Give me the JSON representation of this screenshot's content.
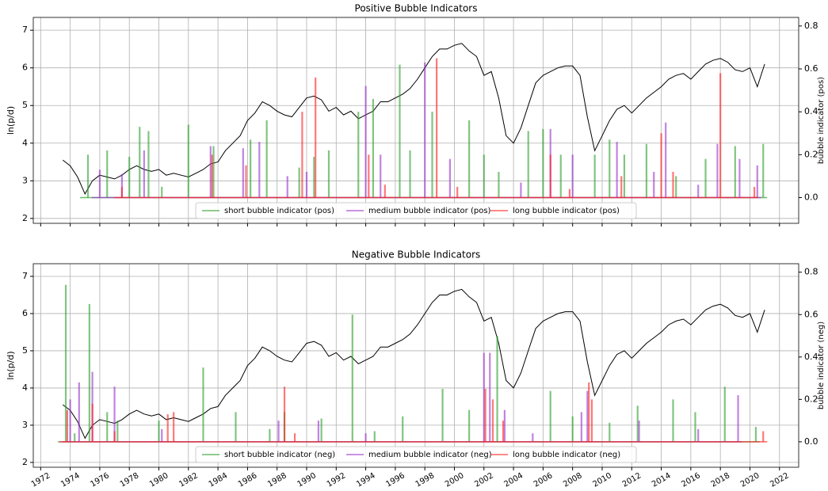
{
  "chart_data": [
    {
      "type": "line",
      "title": "Positive Bubble Indicators",
      "ylabel": "ln(p/d)",
      "y2label": "bubble indicator (pos)",
      "ylim": [
        1.87,
        7.34
      ],
      "yticks": [
        2,
        3,
        4,
        5,
        6,
        7
      ],
      "y2lim": [
        -0.12,
        0.84
      ],
      "y2ticks": [
        {
          "value": 0,
          "label": "0.0"
        },
        0.2,
        0.4,
        0.6,
        0.8
      ],
      "grid": true,
      "legend": "lower center",
      "series": [
        {
          "color": "#000000",
          "x": [
            1973.5,
            1974.0,
            1974.5,
            1975.0,
            1975.5,
            1976.0,
            1976.5,
            1977.0,
            1977.5,
            1978.0,
            1978.5,
            1979.0,
            1979.5,
            1980.0,
            1980.5,
            1981.0,
            1981.5,
            1982.0,
            1982.5,
            1983.0,
            1983.5,
            1984.0,
            1984.5,
            1985.0,
            1985.5,
            1986.0,
            1986.5,
            1987.0,
            1987.5,
            1988.0,
            1988.5,
            1989.0,
            1989.5,
            1990.0,
            1990.5,
            1991.0,
            1991.5,
            1992.0,
            1992.5,
            1993.0,
            1993.5,
            1994.0,
            1994.5,
            1995.0,
            1995.5,
            1996.0,
            1996.5,
            1997.0,
            1997.5,
            1998.0,
            1998.5,
            1999.0,
            1999.5,
            2000.0,
            2000.5,
            2001.0,
            2001.5,
            2002.0,
            2002.5,
            2003.0,
            2003.5,
            2004.0,
            2004.5,
            2005.0,
            2005.5,
            2006.0,
            2006.5,
            2007.0,
            2007.5,
            2008.0,
            2008.5,
            2009.0,
            2009.5,
            2010.0,
            2010.5,
            2011.0,
            2011.5,
            2012.0,
            2012.5,
            2013.0,
            2013.5,
            2014.0,
            2014.5,
            2015.0,
            2015.5,
            2016.0,
            2016.5,
            2017.0,
            2017.5,
            2018.0,
            2018.5,
            2019.0,
            2019.5,
            2020.0,
            2020.5,
            2021.0
          ],
          "values": [
            3.55,
            3.4,
            3.1,
            2.65,
            3.0,
            3.15,
            3.1,
            3.05,
            3.15,
            3.3,
            3.4,
            3.3,
            3.25,
            3.3,
            3.15,
            3.2,
            3.15,
            3.1,
            3.2,
            3.3,
            3.45,
            3.5,
            3.8,
            4.0,
            4.2,
            4.6,
            4.8,
            5.1,
            5.0,
            4.85,
            4.75,
            4.7,
            4.95,
            5.2,
            5.25,
            5.15,
            4.85,
            4.95,
            4.75,
            4.85,
            4.65,
            4.75,
            4.85,
            5.1,
            5.1,
            5.2,
            5.3,
            5.45,
            5.7,
            6.0,
            6.3,
            6.5,
            6.5,
            6.6,
            6.65,
            6.45,
            6.3,
            5.8,
            5.9,
            5.2,
            4.2,
            4.0,
            4.4,
            5.0,
            5.6,
            5.8,
            5.9,
            6.0,
            6.05,
            6.05,
            5.8,
            4.7,
            3.8,
            4.2,
            4.6,
            4.9,
            5.0,
            4.8,
            5.0,
            5.2,
            5.35,
            5.5,
            5.7,
            5.8,
            5.85,
            5.7,
            5.9,
            6.1,
            6.2,
            6.25,
            6.15,
            5.95,
            5.9,
            6.0,
            5.5,
            6.1
          ]
        },
        {
          "name": "short bubble indicator (pos)",
          "color": "#2ca02c",
          "axis": "y2",
          "x": [
            1975.2,
            1976.5,
            1978.0,
            1978.7,
            1979.3,
            1980.2,
            1982.0,
            1983.7,
            1986.2,
            1987.3,
            1989.5,
            1990.5,
            1991.5,
            1993.5,
            1994.5,
            1996.3,
            1997.0,
            1998.5,
            2001.0,
            2002.0,
            2003.0,
            2005.0,
            2006.0,
            2007.2,
            2009.5,
            2010.5,
            2011.5,
            2013.0,
            2015.0,
            2017.0,
            2019.0,
            2020.9
          ],
          "values": [
            0.2,
            0.22,
            0.19,
            0.33,
            0.31,
            0.05,
            0.34,
            0.24,
            0.27,
            0.36,
            0.14,
            0.19,
            0.22,
            0.4,
            0.46,
            0.62,
            0.22,
            0.4,
            0.36,
            0.2,
            0.12,
            0.31,
            0.32,
            0.2,
            0.2,
            0.27,
            0.2,
            0.25,
            0.1,
            0.18,
            0.24,
            0.25
          ]
        },
        {
          "name": "medium bubble indicator (pos)",
          "color": "#9932cc",
          "axis": "y2",
          "x": [
            1976.0,
            1977.5,
            1979.0,
            1983.5,
            1985.7,
            1986.8,
            1988.7,
            1990.0,
            1994.0,
            1995.0,
            1998.0,
            1999.7,
            2004.5,
            2006.5,
            2008.0,
            2011.0,
            2013.5,
            2014.3,
            2016.5,
            2017.8,
            2019.3,
            2020.5
          ],
          "values": [
            0.13,
            0.11,
            0.22,
            0.24,
            0.23,
            0.26,
            0.1,
            0.12,
            0.52,
            0.2,
            0.63,
            0.18,
            0.07,
            0.32,
            0.2,
            0.26,
            0.12,
            0.35,
            0.06,
            0.25,
            0.18,
            0.15
          ]
        },
        {
          "name": "long bubble indicator (pos)",
          "color": "#ff2020",
          "axis": "y2",
          "x": [
            1977.5,
            1983.6,
            1985.9,
            1989.7,
            1990.6,
            1994.2,
            1995.3,
            1998.8,
            2000.2,
            2006.5,
            2007.8,
            2011.3,
            2014.0,
            2014.8,
            2018.0,
            2020.3
          ],
          "values": [
            0.05,
            0.2,
            0.15,
            0.4,
            0.56,
            0.2,
            0.06,
            0.65,
            0.05,
            0.2,
            0.04,
            0.1,
            0.3,
            0.12,
            0.58,
            0.05
          ]
        }
      ]
    },
    {
      "type": "line",
      "title": "Negative Bubble Indicators",
      "ylabel": "ln(p/d)",
      "y2label": "bubble indicator (neg)",
      "xlim": [
        1971.5,
        2023.3
      ],
      "xticks": [
        1972,
        1974,
        1976,
        1978,
        1980,
        1982,
        1984,
        1986,
        1988,
        1990,
        1992,
        1994,
        1996,
        1998,
        2000,
        2002,
        2004,
        2006,
        2008,
        2010,
        2012,
        2014,
        2016,
        2018,
        2020,
        2022
      ],
      "ylim": [
        1.87,
        7.34
      ],
      "yticks": [
        2,
        3,
        4,
        5,
        6,
        7
      ],
      "y2lim": [
        -0.12,
        0.84
      ],
      "y2ticks": [
        {
          "value": 0,
          "label": "0.0"
        },
        0.2,
        0.4,
        0.6,
        0.8
      ],
      "grid": true,
      "legend": "lower center",
      "series": [
        {
          "color": "#000000",
          "x": [
            1973.5,
            1974.0,
            1974.5,
            1975.0,
            1975.5,
            1976.0,
            1976.5,
            1977.0,
            1977.5,
            1978.0,
            1978.5,
            1979.0,
            1979.5,
            1980.0,
            1980.5,
            1981.0,
            1981.5,
            1982.0,
            1982.5,
            1983.0,
            1983.5,
            1984.0,
            1984.5,
            1985.0,
            1985.5,
            1986.0,
            1986.5,
            1987.0,
            1987.5,
            1988.0,
            1988.5,
            1989.0,
            1989.5,
            1990.0,
            1990.5,
            1991.0,
            1991.5,
            1992.0,
            1992.5,
            1993.0,
            1993.5,
            1994.0,
            1994.5,
            1995.0,
            1995.5,
            1996.0,
            1996.5,
            1997.0,
            1997.5,
            1998.0,
            1998.5,
            1999.0,
            1999.5,
            2000.0,
            2000.5,
            2001.0,
            2001.5,
            2002.0,
            2002.5,
            2003.0,
            2003.5,
            2004.0,
            2004.5,
            2005.0,
            2005.5,
            2006.0,
            2006.5,
            2007.0,
            2007.5,
            2008.0,
            2008.5,
            2009.0,
            2009.5,
            2010.0,
            2010.5,
            2011.0,
            2011.5,
            2012.0,
            2012.5,
            2013.0,
            2013.5,
            2014.0,
            2014.5,
            2015.0,
            2015.5,
            2016.0,
            2016.5,
            2017.0,
            2017.5,
            2018.0,
            2018.5,
            2019.0,
            2019.5,
            2020.0,
            2020.5,
            2021.0
          ],
          "values": [
            3.55,
            3.4,
            3.1,
            2.65,
            3.0,
            3.15,
            3.1,
            3.05,
            3.15,
            3.3,
            3.4,
            3.3,
            3.25,
            3.3,
            3.15,
            3.2,
            3.15,
            3.1,
            3.2,
            3.3,
            3.45,
            3.5,
            3.8,
            4.0,
            4.2,
            4.6,
            4.8,
            5.1,
            5.0,
            4.85,
            4.75,
            4.7,
            4.95,
            5.2,
            5.25,
            5.15,
            4.85,
            4.95,
            4.75,
            4.85,
            4.65,
            4.75,
            4.85,
            5.1,
            5.1,
            5.2,
            5.3,
            5.45,
            5.7,
            6.0,
            6.3,
            6.5,
            6.5,
            6.6,
            6.65,
            6.45,
            6.3,
            5.8,
            5.9,
            5.2,
            4.2,
            4.0,
            4.4,
            5.0,
            5.6,
            5.8,
            5.9,
            6.0,
            6.05,
            6.05,
            5.8,
            4.7,
            3.8,
            4.2,
            4.6,
            4.9,
            5.0,
            4.8,
            5.0,
            5.2,
            5.35,
            5.5,
            5.7,
            5.8,
            5.85,
            5.7,
            5.9,
            6.1,
            6.2,
            6.25,
            6.15,
            5.95,
            5.9,
            6.0,
            5.5,
            6.1
          ]
        },
        {
          "name": "short bubble indicator (neg)",
          "color": "#2ca02c",
          "axis": "y2",
          "x": [
            1973.7,
            1974.3,
            1975.3,
            1976.5,
            1977.2,
            1980.0,
            1983.0,
            1985.2,
            1987.5,
            1988.5,
            1991.0,
            1993.1,
            1994.6,
            1996.5,
            1999.2,
            2001.0,
            2002.9,
            2006.5,
            2008.0,
            2010.5,
            2012.4,
            2014.8,
            2016.3,
            2018.3,
            2020.4
          ],
          "values": [
            0.74,
            0.04,
            0.65,
            0.14,
            0.1,
            0.1,
            0.35,
            0.14,
            0.06,
            0.14,
            0.11,
            0.6,
            0.05,
            0.12,
            0.25,
            0.15,
            0.5,
            0.24,
            0.12,
            0.09,
            0.17,
            0.2,
            0.14,
            0.26,
            0.07
          ]
        },
        {
          "name": "medium bubble indicator (neg)",
          "color": "#9932cc",
          "axis": "y2",
          "x": [
            1974.0,
            1974.6,
            1975.5,
            1977.0,
            1980.2,
            1988.1,
            1990.8,
            1994.0,
            2002.0,
            2002.4,
            2003.4,
            2005.3,
            2008.6,
            2009.0,
            2012.5,
            2016.5,
            2019.2
          ],
          "values": [
            0.2,
            0.28,
            0.33,
            0.26,
            0.06,
            0.1,
            0.1,
            0.04,
            0.42,
            0.42,
            0.15,
            0.04,
            0.14,
            0.24,
            0.1,
            0.06,
            0.22
          ]
        },
        {
          "name": "long bubble indicator (neg)",
          "color": "#ff2020",
          "axis": "y2",
          "x": [
            1973.8,
            1975.5,
            1977.0,
            1980.6,
            1981.0,
            1988.5,
            1989.2,
            2002.1,
            2002.6,
            2003.3,
            2009.1,
            2009.3,
            2020.9
          ],
          "values": [
            0.15,
            0.18,
            0.05,
            0.13,
            0.14,
            0.26,
            0.04,
            0.25,
            0.2,
            0.1,
            0.28,
            0.2,
            0.05
          ]
        }
      ]
    }
  ]
}
